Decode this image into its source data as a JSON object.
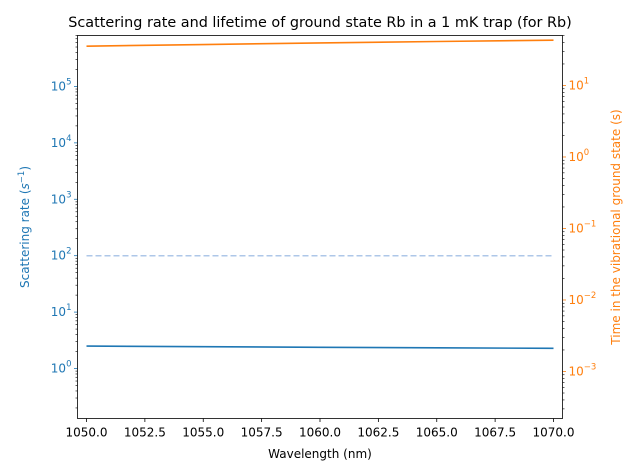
{
  "chart_data": {
    "type": "line",
    "title": "Scattering rate and lifetime of ground state Rb in a 1 mK trap (for Rb)",
    "xlabel": "Wavelength (nm)",
    "xlim": [
      1050.0,
      1070.0
    ],
    "x_ticks": [
      1050.0,
      1052.5,
      1055.0,
      1057.5,
      1060.0,
      1062.5,
      1065.0,
      1067.5,
      1070.0
    ],
    "x_tick_labels": [
      "1050.0",
      "1052.5",
      "1055.0",
      "1057.5",
      "1060.0",
      "1062.5",
      "1065.0",
      "1067.5",
      "1070.0"
    ],
    "left_axis": {
      "label_prefix": "Scattering rate (",
      "label_var": "s",
      "label_exp": "−1",
      "label_suffix": ")",
      "scale": "log",
      "ylim": [
        0.13,
        800000
      ],
      "color": "#1f77b4",
      "ticks": [
        {
          "value": 1,
          "base": "10",
          "exp": "0"
        },
        {
          "value": 10,
          "base": "10",
          "exp": "1"
        },
        {
          "value": 100,
          "base": "10",
          "exp": "2"
        },
        {
          "value": 1000,
          "base": "10",
          "exp": "3"
        },
        {
          "value": 10000,
          "base": "10",
          "exp": "4"
        },
        {
          "value": 100000,
          "base": "10",
          "exp": "5"
        }
      ]
    },
    "right_axis": {
      "label": "Time in the vibrational ground state (s)",
      "scale": "log",
      "ylim": [
        0.00022,
        50
      ],
      "color": "#ff7f0e",
      "ticks": [
        {
          "value": 0.001,
          "base": "10",
          "exp": "−3"
        },
        {
          "value": 0.01,
          "base": "10",
          "exp": "−2"
        },
        {
          "value": 0.1,
          "base": "10",
          "exp": "−1"
        },
        {
          "value": 1,
          "base": "10",
          "exp": "0"
        },
        {
          "value": 10,
          "base": "10",
          "exp": "1"
        }
      ]
    },
    "series": [
      {
        "axis": "left",
        "color": "#1f77b4",
        "style": "solid",
        "x": [
          1050,
          1055,
          1060,
          1065,
          1070
        ],
        "values": [
          2.5,
          2.44,
          2.38,
          2.33,
          2.28
        ]
      },
      {
        "axis": "left",
        "color": "#aec7e8",
        "style": "dashed",
        "x": [
          1050,
          1070
        ],
        "values": [
          100,
          100
        ]
      },
      {
        "axis": "right",
        "color": "#ff7f0e",
        "style": "solid",
        "x": [
          1050,
          1055,
          1060,
          1065,
          1070
        ],
        "values": [
          35.5,
          37.4,
          39.3,
          41.2,
          43.0
        ]
      }
    ],
    "grid": false,
    "legend": "none"
  }
}
